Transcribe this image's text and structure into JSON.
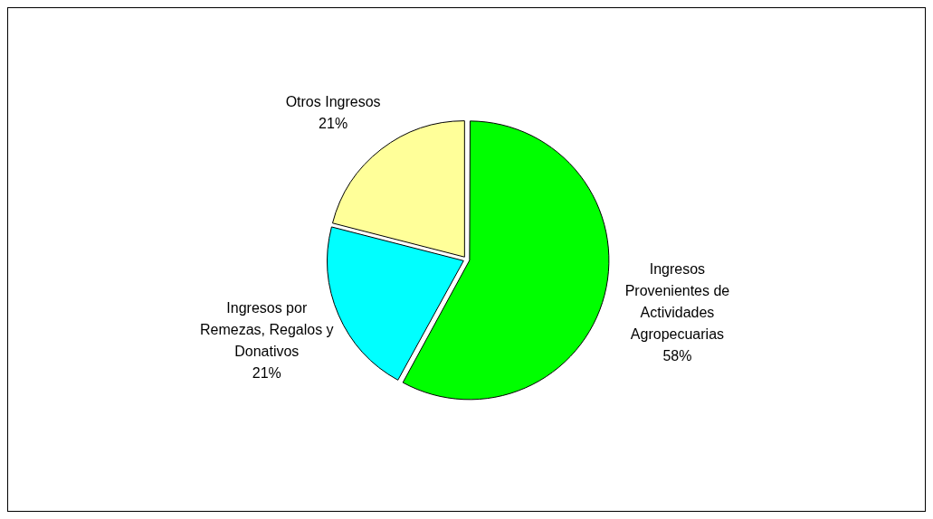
{
  "chart_data": {
    "type": "pie",
    "categories": [
      "Ingresos Provenientes de Actividades Agropecuarias",
      "Ingresos por Remezas, Regalos y Donativos",
      "Otros Ingresos"
    ],
    "values": [
      58,
      21,
      21
    ],
    "colors": [
      "#00ff00",
      "#00ffff",
      "#ffff99"
    ],
    "value_labels": [
      "58%",
      "21%",
      "21%"
    ],
    "legend": false
  }
}
